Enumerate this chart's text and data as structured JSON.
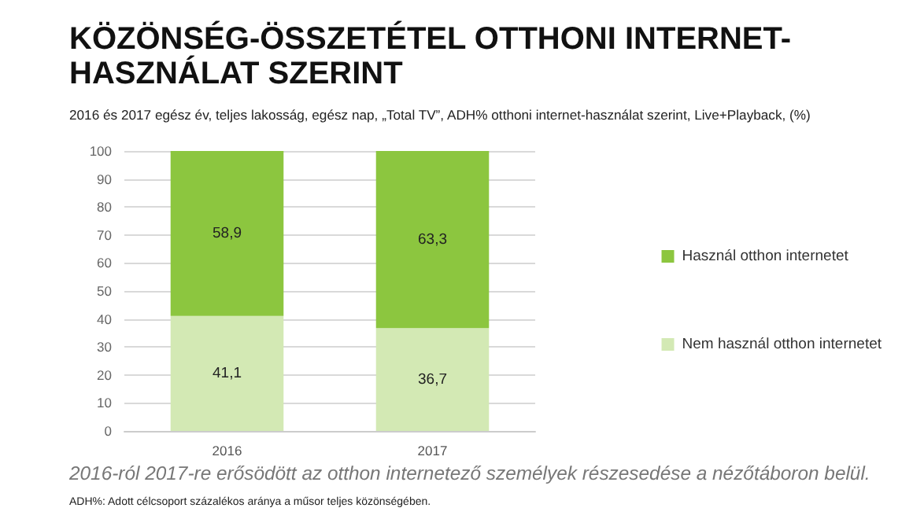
{
  "chart_data": {
    "type": "bar",
    "title": "KÖZÖNSÉG-ÖSSZETÉTEL OTTHONI INTERNET-HASZNÁLAT SZERINT",
    "subtitle": "2016 és 2017 egész év, teljes lakosság, egész nap, „Total TV”, ADH% otthoni internet-használat szerint, Live+Playback, (%)",
    "categories": [
      "2016",
      "2017"
    ],
    "series": [
      {
        "name": "Nem használ otthon internetet",
        "color": "#d3e9b4",
        "values": [
          41.1,
          36.7
        ],
        "value_labels": [
          "41,1",
          "36,7"
        ]
      },
      {
        "name": "Használ otthon internetet",
        "color": "#8cc63f",
        "values": [
          58.9,
          63.3
        ],
        "value_labels": [
          "58,9",
          "63,3"
        ]
      }
    ],
    "stacked": true,
    "ylim": [
      0,
      100
    ],
    "yticks": [
      0,
      10,
      20,
      30,
      40,
      50,
      60,
      70,
      80,
      90,
      100
    ],
    "grid": "y",
    "legend": "right",
    "annotations": [
      "2016-ról 2017-re erősödött az otthon internetező személyek részesedése a nézőtáboron belül.",
      "ADH%: Adott célcsoport százalékos aránya a műsor teljes közönségében."
    ]
  }
}
